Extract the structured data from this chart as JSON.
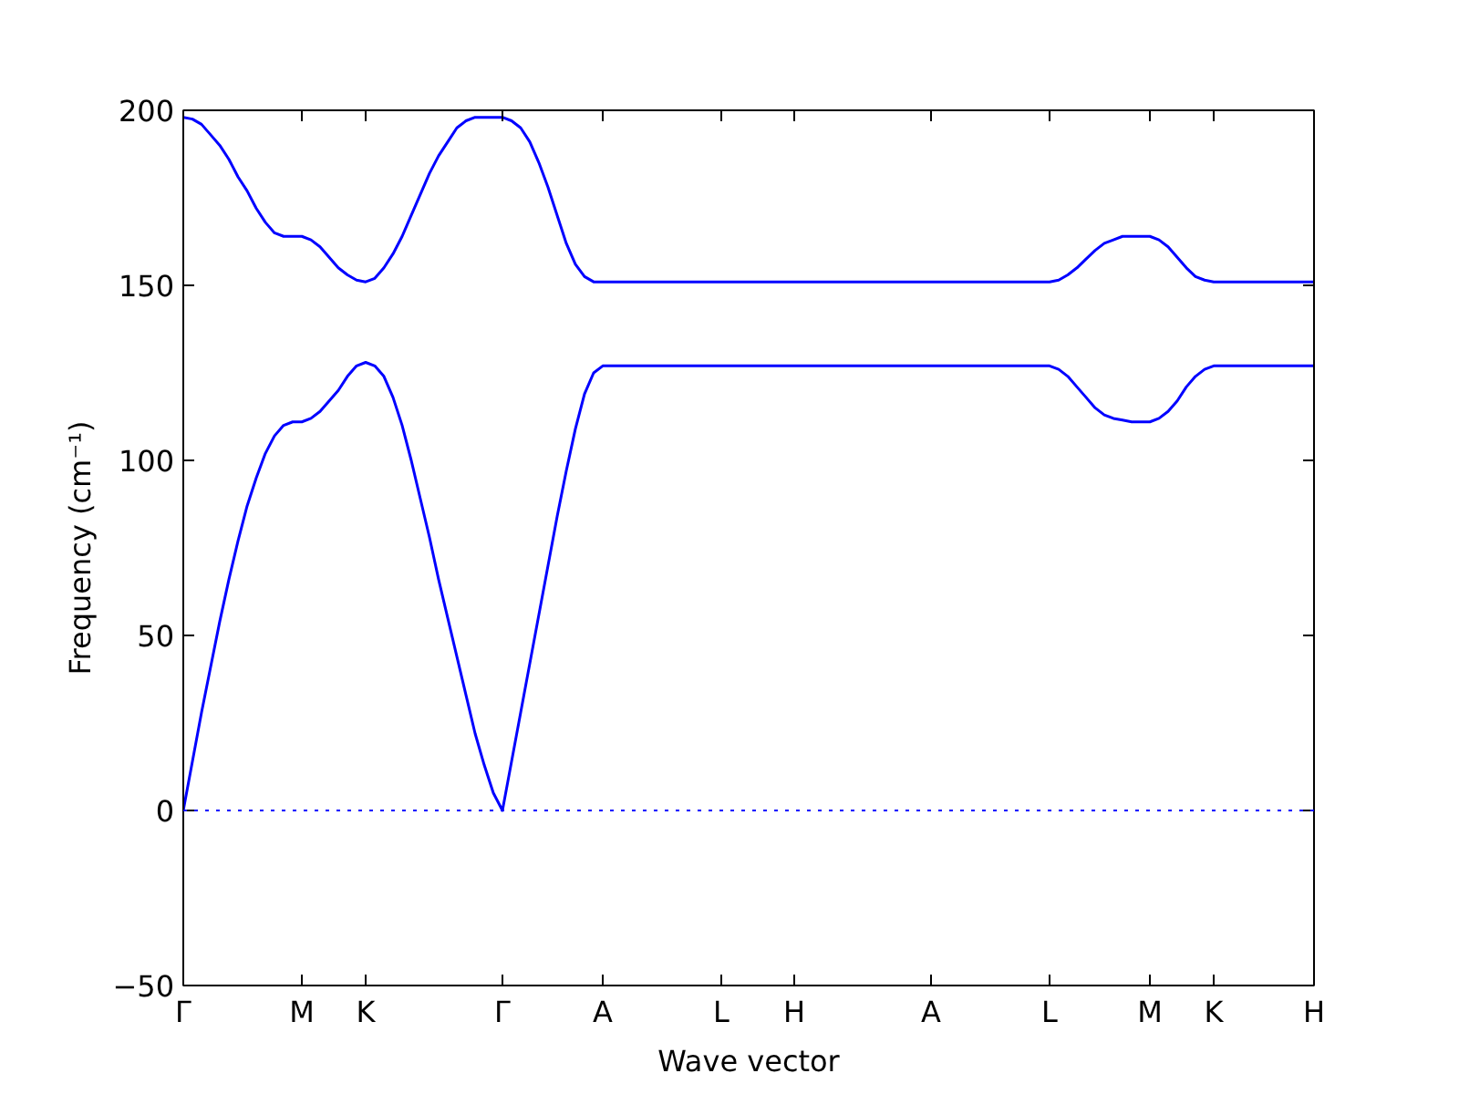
{
  "chart_data": {
    "type": "line",
    "xlabel": "Wave vector",
    "ylabel": "Frequency (cm⁻¹)",
    "ylim": [
      -50,
      200
    ],
    "yticks": [
      -50,
      0,
      50,
      100,
      150,
      200
    ],
    "grid": false,
    "marker": "none",
    "line_style": "solid",
    "categories": [
      "Γ",
      null,
      null,
      null,
      null,
      null,
      null,
      null,
      null,
      null,
      null,
      null,
      null,
      "M",
      null,
      null,
      null,
      null,
      null,
      null,
      "K",
      null,
      null,
      null,
      null,
      null,
      null,
      null,
      null,
      null,
      null,
      null,
      null,
      null,
      null,
      "Γ",
      null,
      null,
      null,
      null,
      null,
      null,
      null,
      null,
      null,
      null,
      "A",
      null,
      null,
      null,
      null,
      null,
      null,
      null,
      null,
      null,
      null,
      null,
      null,
      "L",
      null,
      null,
      null,
      null,
      null,
      null,
      null,
      "H",
      null,
      null,
      null,
      null,
      null,
      null,
      null,
      null,
      null,
      null,
      null,
      null,
      null,
      null,
      "A",
      null,
      null,
      null,
      null,
      null,
      null,
      null,
      null,
      null,
      null,
      null,
      null,
      "L",
      null,
      null,
      null,
      null,
      null,
      null,
      null,
      null,
      null,
      null,
      "M",
      null,
      null,
      null,
      null,
      null,
      null,
      "K",
      null,
      null,
      null,
      null,
      null,
      null,
      null,
      null,
      null,
      null,
      "H"
    ],
    "ref_lines": [
      {
        "axis": "y",
        "value": 0,
        "color": "#0000ff",
        "line_style": "dotted"
      }
    ],
    "series": [
      {
        "color": "#0000ff",
        "values": [
          0,
          14,
          28,
          41,
          54,
          66,
          77,
          87,
          95,
          102,
          107,
          110,
          111,
          111,
          112,
          114,
          117,
          120,
          124,
          127,
          128,
          127,
          124,
          118,
          110,
          100,
          89,
          78,
          66,
          55,
          44,
          33,
          22,
          13,
          5,
          0,
          14,
          28,
          42,
          56,
          70,
          84,
          97,
          109,
          119,
          125,
          127,
          127,
          127,
          127,
          127,
          127,
          127,
          127,
          127,
          127,
          127,
          127,
          127,
          127,
          127,
          127,
          127,
          127,
          127,
          127,
          127,
          127,
          127,
          127,
          127,
          127,
          127,
          127,
          127,
          127,
          127,
          127,
          127,
          127,
          127,
          127,
          127,
          127,
          127,
          127,
          127,
          127,
          127,
          127,
          127,
          127,
          127,
          127,
          127,
          127,
          126,
          124,
          121,
          118,
          115,
          113,
          112,
          111.5,
          111,
          111,
          111,
          112,
          114,
          117,
          121,
          124,
          126,
          127,
          127,
          127,
          127,
          127,
          127,
          127,
          127,
          127,
          127,
          127,
          127
        ]
      },
      {
        "color": "#0000ff",
        "values": [
          198,
          197.5,
          196,
          193,
          190,
          186,
          181,
          177,
          172,
          168,
          165,
          164,
          164,
          164,
          163,
          161,
          158,
          155,
          153,
          151.5,
          151,
          152,
          155,
          159,
          164,
          170,
          176,
          182,
          187,
          191,
          195,
          197,
          198,
          198,
          198,
          198,
          197,
          195,
          191,
          185,
          178,
          170,
          162,
          156,
          152.5,
          151,
          151,
          151,
          151,
          151,
          151,
          151,
          151,
          151,
          151,
          151,
          151,
          151,
          151,
          151,
          151,
          151,
          151,
          151,
          151,
          151,
          151,
          151,
          151,
          151,
          151,
          151,
          151,
          151,
          151,
          151,
          151,
          151,
          151,
          151,
          151,
          151,
          151,
          151,
          151,
          151,
          151,
          151,
          151,
          151,
          151,
          151,
          151,
          151,
          151,
          151,
          151.5,
          153,
          155,
          157.5,
          160,
          162,
          163,
          164,
          164,
          164,
          164,
          163,
          161,
          158,
          155,
          152.5,
          151.5,
          151,
          151,
          151,
          151,
          151,
          151,
          151,
          151,
          151,
          151,
          151,
          151
        ]
      }
    ]
  }
}
